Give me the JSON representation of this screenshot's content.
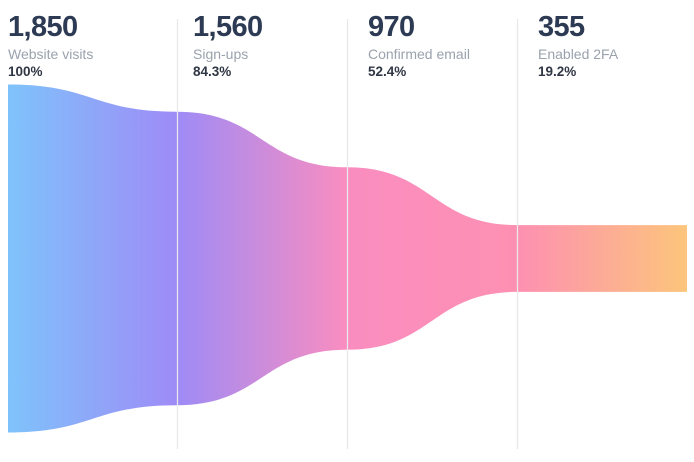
{
  "chart_data": {
    "type": "funnel",
    "title": "",
    "categories": [
      "Website visits",
      "Sign-ups",
      "Confirmed email",
      "Enabled 2FA"
    ],
    "values": [
      1850,
      1560,
      970,
      355
    ],
    "stages": [
      {
        "value": 1850,
        "value_label": "1,850",
        "label": "Website visits",
        "percent": "100%"
      },
      {
        "value": 1560,
        "value_label": "1,560",
        "label": "Sign-ups",
        "percent": "84.3%"
      },
      {
        "value": 970,
        "value_label": "970",
        "label": "Confirmed email",
        "percent": "52.4%"
      },
      {
        "value": 355,
        "value_label": "355",
        "label": "Enabled 2FA",
        "percent": "19.2%"
      }
    ],
    "gradient_stops": [
      "#7fc3fb",
      "#9e8bf6",
      "#fa8dc0",
      "#fd90b2",
      "#fcc57b"
    ],
    "colors": {
      "divider": "#e8e8eb",
      "number": "#2d3a53",
      "label": "#9aa2ad",
      "percent": "#2f3644",
      "background": "#ffffff"
    },
    "layout_hints": {
      "orientation": "horizontal",
      "last_segment": "constant-width",
      "column_dividers": true
    }
  }
}
